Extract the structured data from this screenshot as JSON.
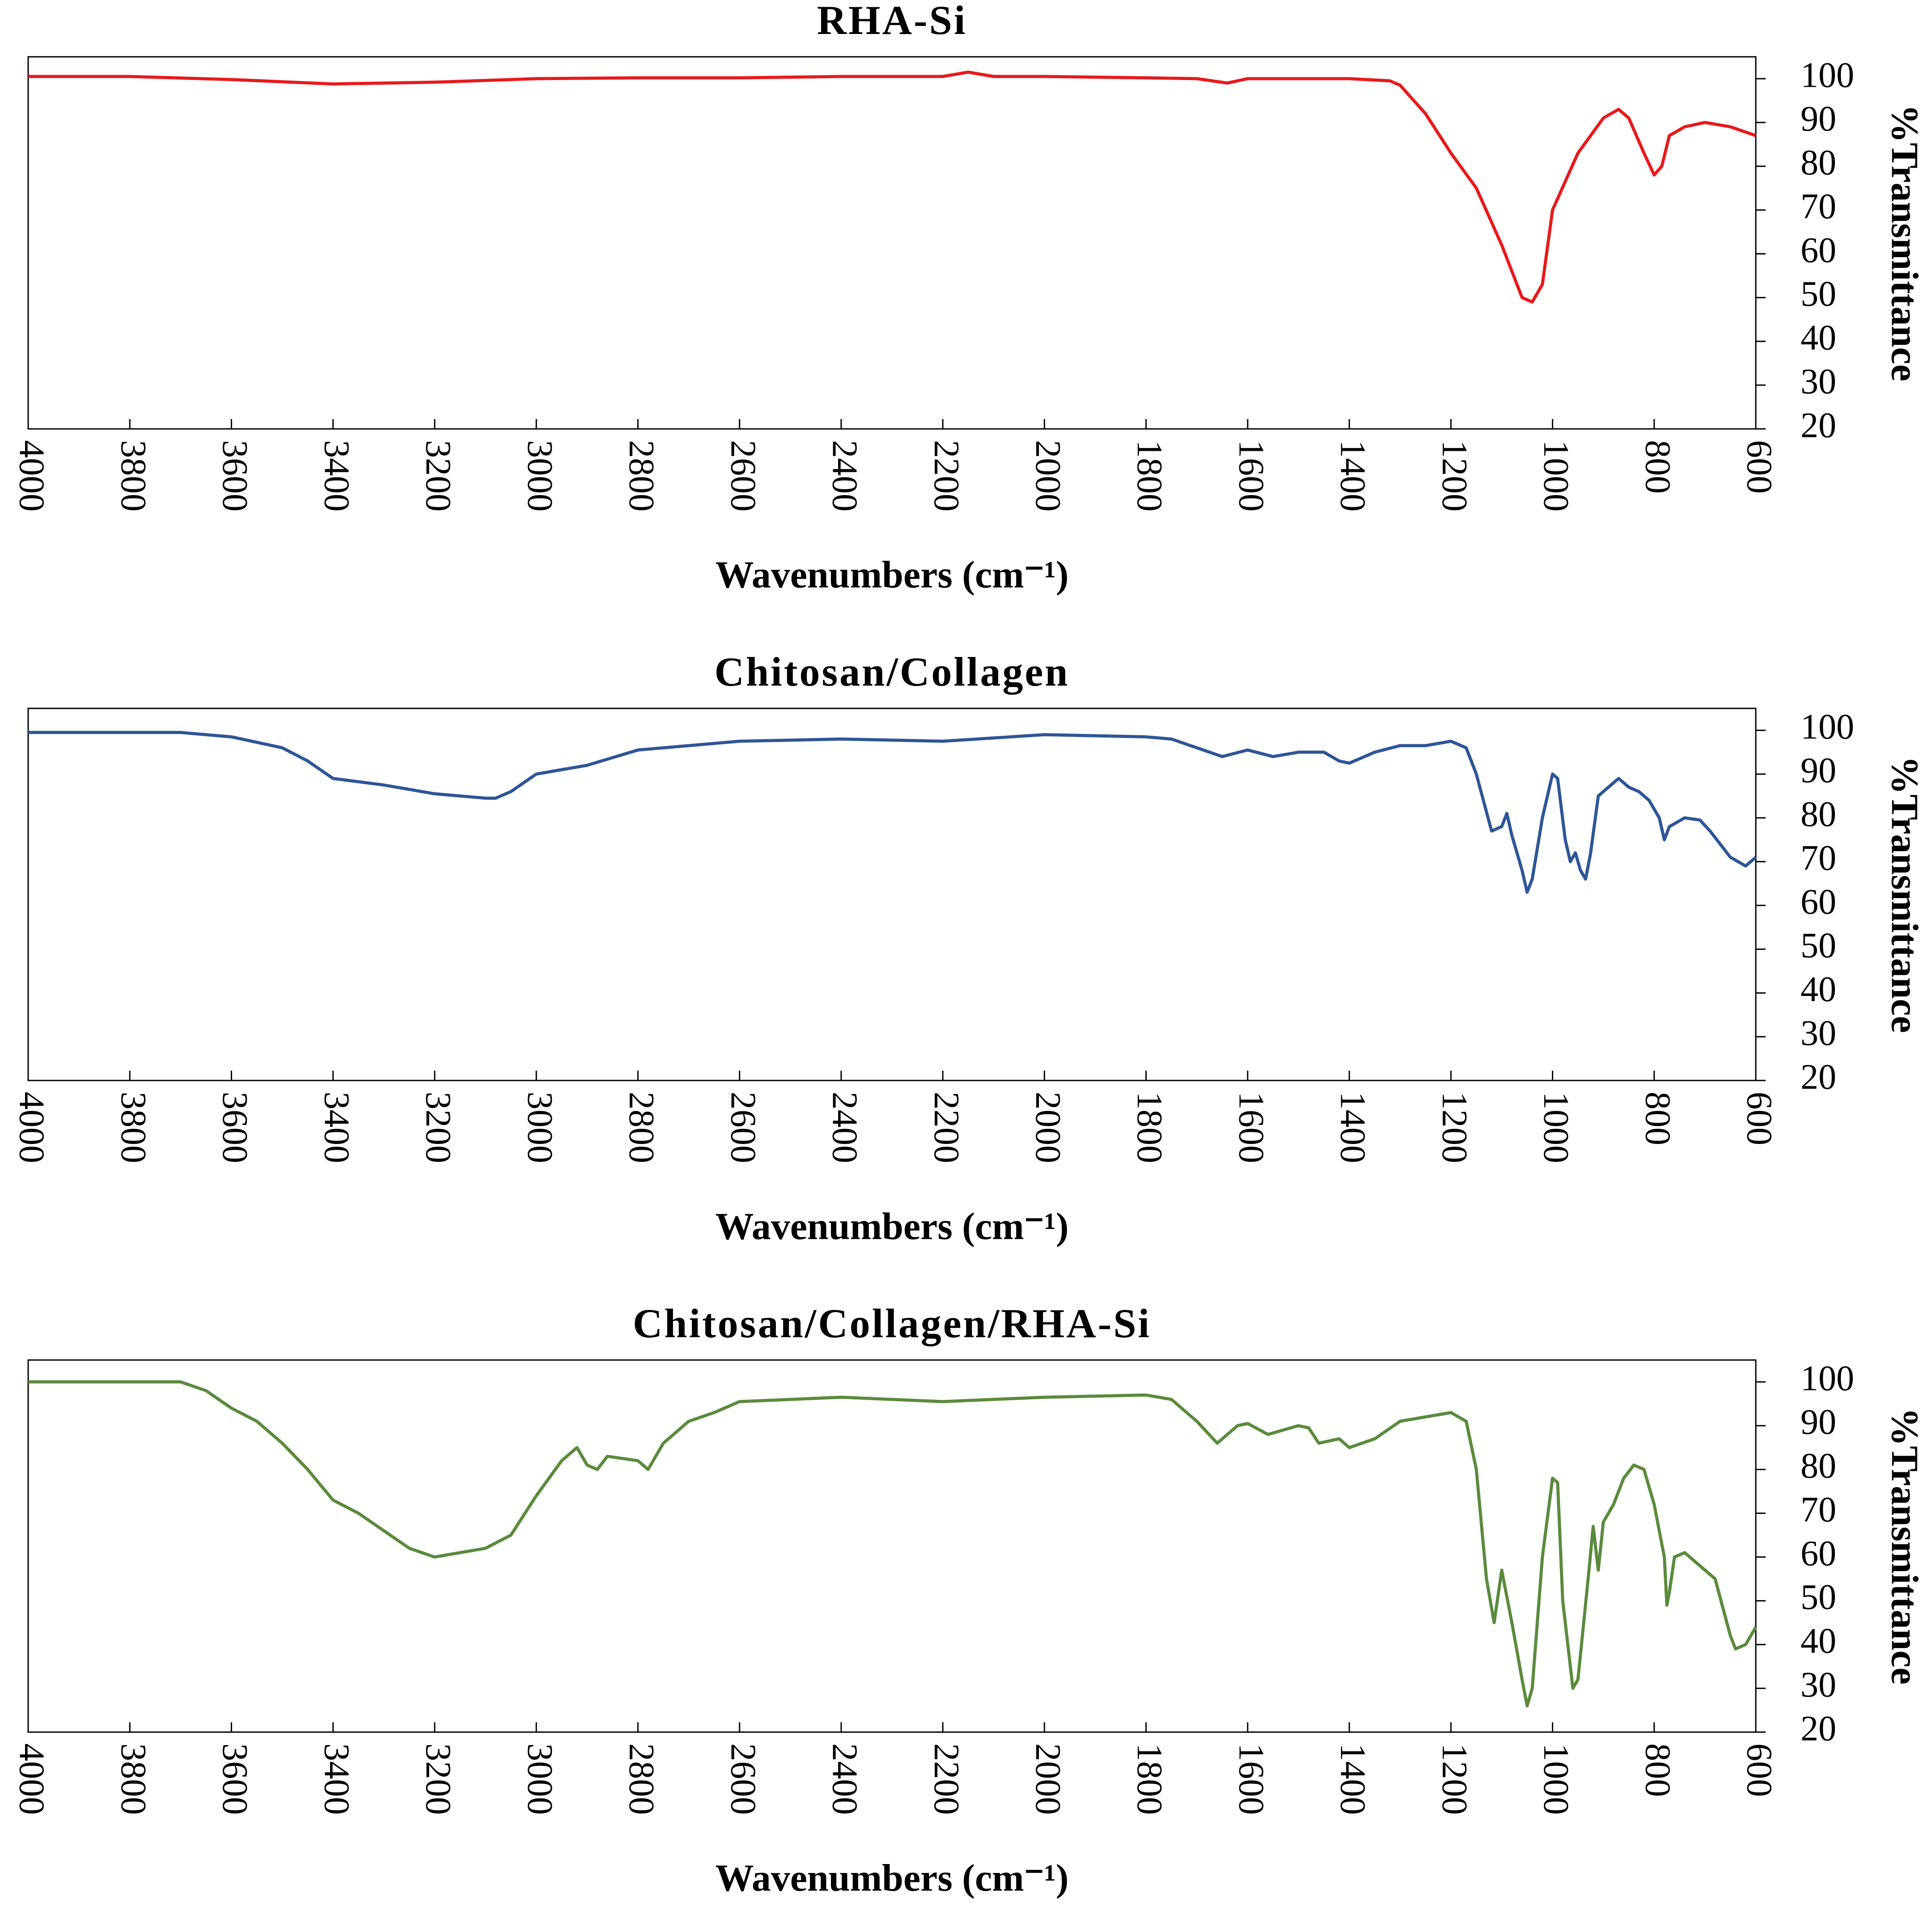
{
  "chart_data": [
    {
      "type": "line",
      "title": "RHA-Si",
      "x_label": "Wavenumbers (cm⁻¹)",
      "y_label": "%Transmittance",
      "color": "#e8191c",
      "x": [
        4000,
        3800,
        3600,
        3400,
        3200,
        3000,
        2800,
        2600,
        2400,
        2200,
        2150,
        2100,
        2000,
        1800,
        1700,
        1640,
        1600,
        1400,
        1320,
        1300,
        1250,
        1200,
        1150,
        1100,
        1060,
        1040,
        1020,
        1000,
        950,
        900,
        870,
        850,
        820,
        800,
        785,
        770,
        740,
        700,
        650,
        600
      ],
      "values": [
        100.5,
        100.5,
        99.8,
        98.8,
        99.2,
        100,
        100.2,
        100.2,
        100.5,
        100.5,
        101.5,
        100.5,
        100.5,
        100.2,
        100,
        99,
        100,
        100,
        99.5,
        98.5,
        92,
        83,
        75,
        62,
        50,
        49,
        53,
        70,
        83,
        91,
        93,
        91,
        83,
        78,
        80,
        87,
        89,
        90,
        89,
        87
      ],
      "xlim": [
        4000,
        600
      ],
      "ylim": [
        20,
        105
      ],
      "xticks": [
        4000,
        3800,
        3600,
        3400,
        3200,
        3000,
        2800,
        2600,
        2400,
        2200,
        2000,
        1800,
        1600,
        1400,
        1200,
        1000,
        800,
        600
      ],
      "yticks": [
        20,
        30,
        40,
        50,
        60,
        70,
        80,
        90,
        100
      ]
    },
    {
      "type": "line",
      "title": "Chitosan/Collagen",
      "x_label": "Wavenumbers (cm⁻¹)",
      "y_label": "%Transmittance",
      "color": "#2e5597",
      "x": [
        4000,
        3800,
        3700,
        3600,
        3500,
        3450,
        3400,
        3300,
        3200,
        3100,
        3080,
        3050,
        3000,
        2950,
        2900,
        2800,
        2600,
        2400,
        2200,
        2000,
        1800,
        1750,
        1700,
        1650,
        1600,
        1550,
        1500,
        1450,
        1420,
        1400,
        1350,
        1300,
        1250,
        1200,
        1170,
        1150,
        1120,
        1100,
        1090,
        1080,
        1060,
        1050,
        1040,
        1020,
        1000,
        990,
        975,
        965,
        955,
        945,
        935,
        925,
        910,
        890,
        870,
        850,
        830,
        810,
        790,
        780,
        770,
        740,
        710,
        690,
        650,
        620,
        600
      ],
      "values": [
        99.5,
        99.5,
        99.5,
        98.5,
        96,
        93,
        89,
        87.5,
        85.5,
        84.5,
        84.5,
        86,
        90,
        91,
        92,
        95.5,
        97.5,
        98,
        97.5,
        99,
        98.5,
        98,
        96,
        94,
        95.5,
        94,
        95,
        95,
        93,
        92.5,
        95,
        96.5,
        96.5,
        97.5,
        96,
        90,
        77,
        78,
        81,
        76,
        68,
        63,
        66,
        80,
        90,
        89,
        75,
        70,
        72,
        68,
        66,
        72,
        85,
        87,
        89,
        87,
        86,
        84,
        80,
        75,
        78,
        80,
        79.5,
        77,
        71,
        69,
        71
      ],
      "xlim": [
        4000,
        600
      ],
      "ylim": [
        20,
        105
      ],
      "xticks": [
        4000,
        3800,
        3600,
        3400,
        3200,
        3000,
        2800,
        2600,
        2400,
        2200,
        2000,
        1800,
        1600,
        1400,
        1200,
        1000,
        800,
        600
      ],
      "yticks": [
        20,
        30,
        40,
        50,
        60,
        70,
        80,
        90,
        100
      ]
    },
    {
      "type": "line",
      "title": "Chitosan/Collagen/RHA-Si",
      "x_label": "Wavenumbers (cm⁻¹)",
      "y_label": "%Transmittance",
      "color": "#5b8a3c",
      "x": [
        4000,
        3700,
        3650,
        3600,
        3550,
        3500,
        3450,
        3400,
        3350,
        3300,
        3250,
        3200,
        3100,
        3050,
        3000,
        2950,
        2920,
        2900,
        2880,
        2860,
        2800,
        2780,
        2750,
        2700,
        2650,
        2600,
        2400,
        2200,
        2000,
        1800,
        1750,
        1700,
        1660,
        1620,
        1600,
        1560,
        1500,
        1480,
        1460,
        1420,
        1400,
        1350,
        1300,
        1250,
        1200,
        1170,
        1150,
        1130,
        1115,
        1100,
        1080,
        1060,
        1050,
        1040,
        1020,
        1000,
        990,
        980,
        960,
        950,
        930,
        920,
        910,
        900,
        880,
        860,
        840,
        820,
        800,
        780,
        775,
        770,
        760,
        740,
        700,
        680,
        650,
        640,
        620,
        600
      ],
      "values": [
        100,
        100,
        98,
        94,
        91,
        86,
        80,
        73,
        70,
        66,
        62,
        60,
        62,
        65,
        74,
        82,
        85,
        81,
        80,
        83,
        82,
        80,
        86,
        91,
        93,
        95.5,
        96.5,
        95.5,
        96.5,
        97,
        96,
        91,
        86,
        90,
        90.5,
        88,
        90,
        89.5,
        86,
        87,
        85,
        87,
        91,
        92,
        93,
        91,
        80,
        55,
        45,
        57,
        45,
        32,
        26,
        30,
        60,
        78,
        77,
        50,
        30,
        32,
        55,
        67,
        57,
        68,
        72,
        78,
        81,
        80,
        72,
        60,
        49,
        52,
        60,
        61,
        57,
        55,
        42,
        39,
        40,
        44
      ],
      "xlim": [
        4000,
        600
      ],
      "ylim": [
        20,
        105
      ],
      "xticks": [
        4000,
        3800,
        3600,
        3400,
        3200,
        3000,
        2800,
        2600,
        2400,
        2200,
        2000,
        1800,
        1600,
        1400,
        1200,
        1000,
        800,
        600
      ],
      "yticks": [
        20,
        30,
        40,
        50,
        60,
        70,
        80,
        90,
        100
      ]
    }
  ]
}
